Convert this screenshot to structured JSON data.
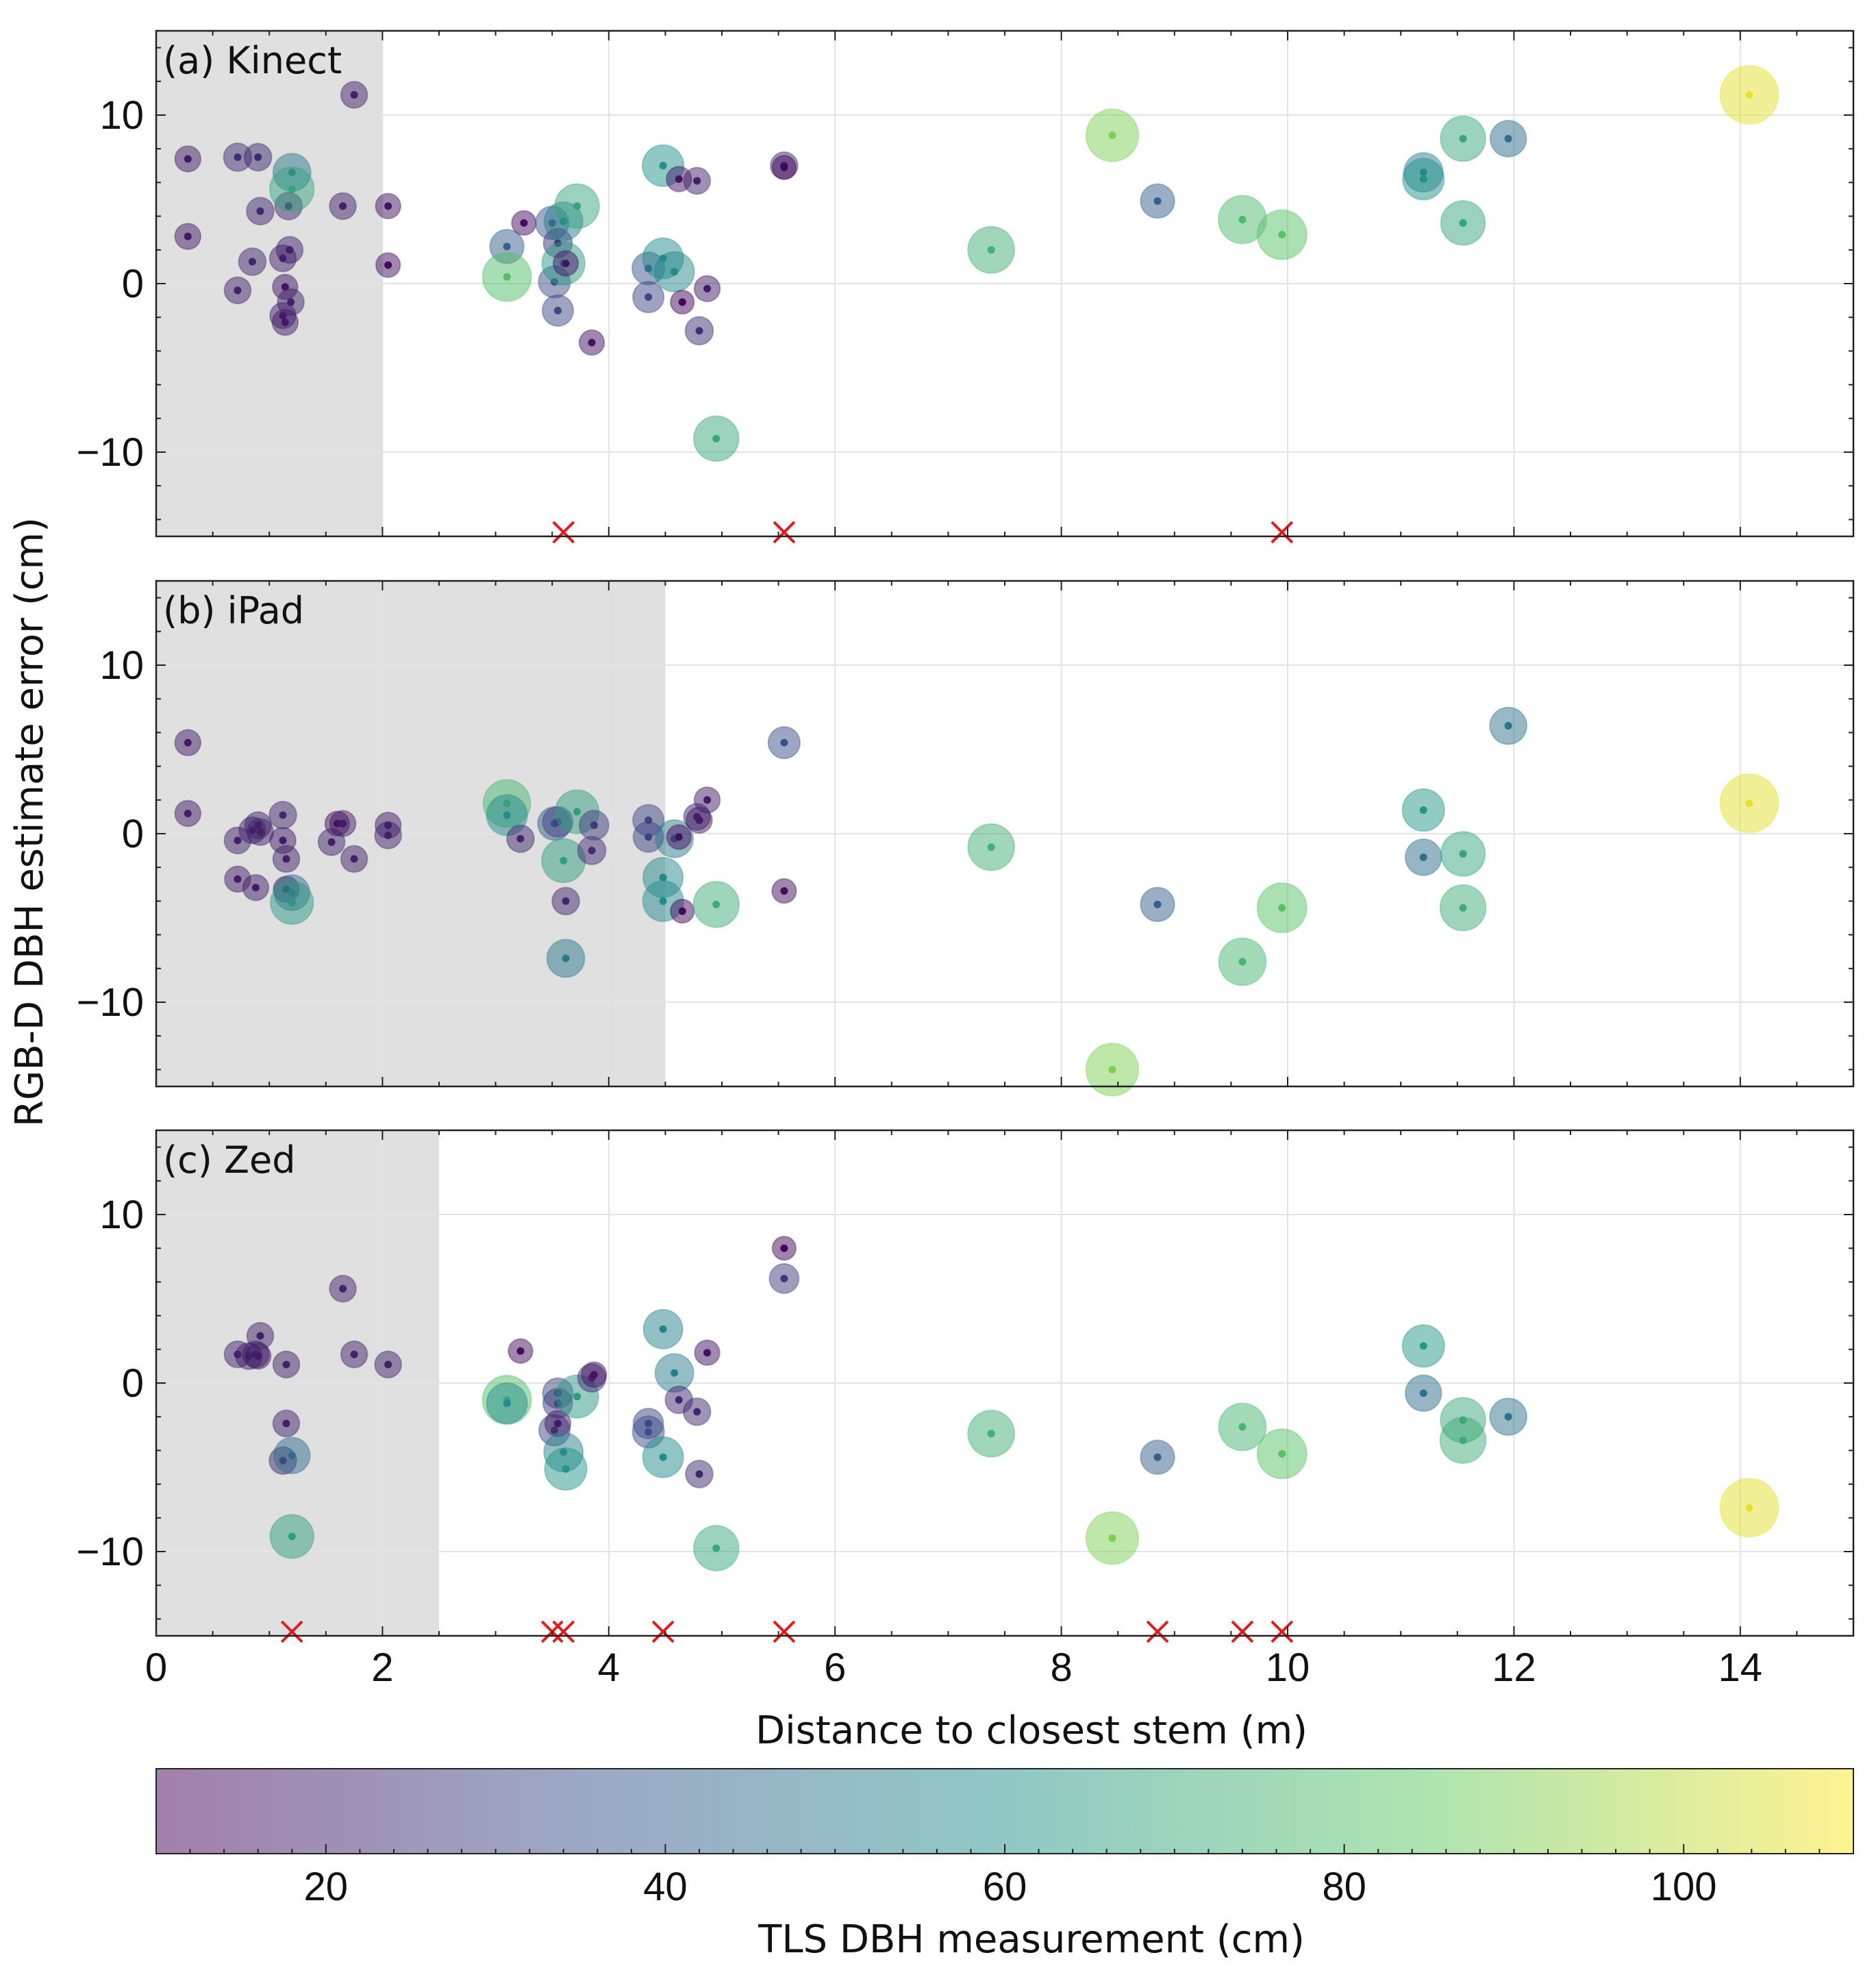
{
  "chart_data": {
    "type": "scatter",
    "xlabel": "Distance to closest stem (m)",
    "ylabel": "RGB-D DBH estimate error (cm)",
    "xlim": [
      0,
      15
    ],
    "ylim": [
      -15,
      15
    ],
    "x_ticks": [
      "0",
      "2",
      "4",
      "6",
      "8",
      "10",
      "12",
      "14"
    ],
    "y_ticks": [
      "10",
      "0",
      "−10"
    ],
    "x_tick_values": [
      0,
      2,
      4,
      6,
      8,
      10,
      12,
      14
    ],
    "y_tick_values": [
      10,
      0,
      -10
    ],
    "colorbar": {
      "label": "TLS DBH measurement (cm)",
      "range": [
        10,
        110
      ],
      "ticks": [
        "20",
        "40",
        "60",
        "80",
        "100"
      ],
      "tick_values": [
        20,
        40,
        60,
        80,
        100
      ],
      "colormap": [
        "#440154",
        "#3b528b",
        "#21918c",
        "#5ec962",
        "#fde725"
      ]
    },
    "panels": [
      {
        "label": "(a) Kinect",
        "shaded_xmax": 2.0,
        "points": [
          {
            "x": 0.28,
            "y": 7.4,
            "dbh": 18
          },
          {
            "x": 0.28,
            "y": 2.8,
            "dbh": 18
          },
          {
            "x": 0.72,
            "y": 7.5,
            "dbh": 24
          },
          {
            "x": 0.72,
            "y": -0.4,
            "dbh": 20
          },
          {
            "x": 0.85,
            "y": 1.3,
            "dbh": 22
          },
          {
            "x": 0.9,
            "y": 7.5,
            "dbh": 22
          },
          {
            "x": 0.92,
            "y": 4.3,
            "dbh": 22
          },
          {
            "x": 1.12,
            "y": 1.5,
            "dbh": 20
          },
          {
            "x": 1.14,
            "y": -0.2,
            "dbh": 16
          },
          {
            "x": 1.12,
            "y": -1.9,
            "dbh": 18
          },
          {
            "x": 1.14,
            "y": -2.3,
            "dbh": 18
          },
          {
            "x": 1.18,
            "y": 2.0,
            "dbh": 20
          },
          {
            "x": 1.17,
            "y": 4.6,
            "dbh": 22
          },
          {
            "x": 1.19,
            "y": -1.1,
            "dbh": 20
          },
          {
            "x": 1.2,
            "y": 6.6,
            "dbh": 50
          },
          {
            "x": 1.2,
            "y": 5.6,
            "dbh": 68
          },
          {
            "x": 1.65,
            "y": 4.6,
            "dbh": 20
          },
          {
            "x": 1.75,
            "y": 11.2,
            "dbh": 20
          },
          {
            "x": 2.05,
            "y": 4.6,
            "dbh": 16
          },
          {
            "x": 2.05,
            "y": 1.1,
            "dbh": 14
          },
          {
            "x": 3.1,
            "y": 2.2,
            "dbh": 40
          },
          {
            "x": 3.1,
            "y": 0.4,
            "dbh": 80
          },
          {
            "x": 3.25,
            "y": 3.6,
            "dbh": 14
          },
          {
            "x": 3.5,
            "y": 3.6,
            "dbh": 38
          },
          {
            "x": 3.55,
            "y": 2.4,
            "dbh": 26
          },
          {
            "x": 3.52,
            "y": 0.1,
            "dbh": 34
          },
          {
            "x": 3.55,
            "y": -1.6,
            "dbh": 32
          },
          {
            "x": 3.6,
            "y": 3.7,
            "dbh": 52
          },
          {
            "x": 3.6,
            "y": 1.2,
            "dbh": 64
          },
          {
            "x": 3.62,
            "y": 1.2,
            "dbh": 16
          },
          {
            "x": 3.72,
            "y": 4.6,
            "dbh": 68
          },
          {
            "x": 3.85,
            "y": -3.5,
            "dbh": 16
          },
          {
            "x": 4.35,
            "y": 0.9,
            "dbh": 36
          },
          {
            "x": 4.35,
            "y": -0.8,
            "dbh": 32
          },
          {
            "x": 4.48,
            "y": 7.0,
            "dbh": 60
          },
          {
            "x": 4.48,
            "y": 1.5,
            "dbh": 58
          },
          {
            "x": 4.58,
            "y": 0.7,
            "dbh": 56
          },
          {
            "x": 4.62,
            "y": 6.2,
            "dbh": 16
          },
          {
            "x": 4.65,
            "y": -1.1,
            "dbh": 12
          },
          {
            "x": 4.78,
            "y": 6.1,
            "dbh": 20
          },
          {
            "x": 4.8,
            "y": -2.8,
            "dbh": 24
          },
          {
            "x": 4.87,
            "y": -0.3,
            "dbh": 18
          },
          {
            "x": 4.95,
            "y": -9.2,
            "dbh": 70
          },
          {
            "x": 5.55,
            "y": 7.0,
            "dbh": 22
          },
          {
            "x": 5.55,
            "y": 6.9,
            "dbh": 12
          },
          {
            "x": 7.38,
            "y": 2.0,
            "dbh": 74
          },
          {
            "x": 8.45,
            "y": 8.8,
            "dbh": 90
          },
          {
            "x": 8.85,
            "y": 4.9,
            "dbh": 40
          },
          {
            "x": 9.6,
            "y": 3.8,
            "dbh": 78
          },
          {
            "x": 9.95,
            "y": 2.9,
            "dbh": 82
          },
          {
            "x": 11.2,
            "y": 6.6,
            "dbh": 54
          },
          {
            "x": 11.2,
            "y": 6.2,
            "dbh": 60
          },
          {
            "x": 11.55,
            "y": 8.6,
            "dbh": 70
          },
          {
            "x": 11.55,
            "y": 3.6,
            "dbh": 68
          },
          {
            "x": 11.95,
            "y": 8.6,
            "dbh": 46
          },
          {
            "x": 14.08,
            "y": 11.2,
            "dbh": 106
          }
        ],
        "excluded_x": [
          3.6,
          5.55,
          9.95
        ]
      },
      {
        "label": "(b) iPad",
        "shaded_xmax": 4.5,
        "points": [
          {
            "x": 0.28,
            "y": 5.4,
            "dbh": 18
          },
          {
            "x": 0.28,
            "y": 1.2,
            "dbh": 18
          },
          {
            "x": 0.72,
            "y": -0.4,
            "dbh": 20
          },
          {
            "x": 0.72,
            "y": -2.7,
            "dbh": 18
          },
          {
            "x": 0.85,
            "y": 0.2,
            "dbh": 20
          },
          {
            "x": 0.88,
            "y": -3.2,
            "dbh": 18
          },
          {
            "x": 0.9,
            "y": 0.5,
            "dbh": 20
          },
          {
            "x": 0.92,
            "y": 0.1,
            "dbh": 20
          },
          {
            "x": 1.12,
            "y": -0.4,
            "dbh": 18
          },
          {
            "x": 1.12,
            "y": 1.1,
            "dbh": 22
          },
          {
            "x": 1.15,
            "y": -1.5,
            "dbh": 20
          },
          {
            "x": 1.15,
            "y": -3.3,
            "dbh": 18
          },
          {
            "x": 1.2,
            "y": -3.5,
            "dbh": 44
          },
          {
            "x": 1.2,
            "y": -4.1,
            "dbh": 64
          },
          {
            "x": 1.55,
            "y": -0.5,
            "dbh": 20
          },
          {
            "x": 1.6,
            "y": 0.6,
            "dbh": 14
          },
          {
            "x": 1.65,
            "y": 0.6,
            "dbh": 18
          },
          {
            "x": 1.75,
            "y": -1.5,
            "dbh": 20
          },
          {
            "x": 2.05,
            "y": 0.5,
            "dbh": 18
          },
          {
            "x": 2.05,
            "y": -0.1,
            "dbh": 20
          },
          {
            "x": 3.1,
            "y": 1.8,
            "dbh": 76
          },
          {
            "x": 3.1,
            "y": 1.1,
            "dbh": 58
          },
          {
            "x": 3.22,
            "y": -0.3,
            "dbh": 22
          },
          {
            "x": 3.52,
            "y": 0.6,
            "dbh": 38
          },
          {
            "x": 3.55,
            "y": 0.7,
            "dbh": 30
          },
          {
            "x": 3.6,
            "y": -1.6,
            "dbh": 66
          },
          {
            "x": 3.62,
            "y": -4.0,
            "dbh": 22
          },
          {
            "x": 3.62,
            "y": -7.4,
            "dbh": 50
          },
          {
            "x": 3.72,
            "y": 1.3,
            "dbh": 66
          },
          {
            "x": 3.85,
            "y": -1.0,
            "dbh": 24
          },
          {
            "x": 3.87,
            "y": 0.5,
            "dbh": 28
          },
          {
            "x": 4.35,
            "y": 0.8,
            "dbh": 32
          },
          {
            "x": 4.35,
            "y": -0.2,
            "dbh": 30
          },
          {
            "x": 4.48,
            "y": -2.6,
            "dbh": 56
          },
          {
            "x": 4.48,
            "y": -4.0,
            "dbh": 58
          },
          {
            "x": 4.58,
            "y": -0.3,
            "dbh": 50
          },
          {
            "x": 4.62,
            "y": -0.2,
            "dbh": 14
          },
          {
            "x": 4.65,
            "y": -4.6,
            "dbh": 12
          },
          {
            "x": 4.78,
            "y": 1.0,
            "dbh": 20
          },
          {
            "x": 4.8,
            "y": 0.8,
            "dbh": 18
          },
          {
            "x": 4.87,
            "y": 2.0,
            "dbh": 18
          },
          {
            "x": 4.95,
            "y": -4.2,
            "dbh": 72
          },
          {
            "x": 5.55,
            "y": 5.4,
            "dbh": 34
          },
          {
            "x": 5.55,
            "y": -3.4,
            "dbh": 14
          },
          {
            "x": 7.38,
            "y": -0.8,
            "dbh": 74
          },
          {
            "x": 8.45,
            "y": -14.0,
            "dbh": 90
          },
          {
            "x": 8.85,
            "y": -4.2,
            "dbh": 40
          },
          {
            "x": 9.6,
            "y": -7.6,
            "dbh": 76
          },
          {
            "x": 9.95,
            "y": -4.4,
            "dbh": 82
          },
          {
            "x": 11.2,
            "y": 1.4,
            "dbh": 62
          },
          {
            "x": 11.2,
            "y": -1.4,
            "dbh": 46
          },
          {
            "x": 11.55,
            "y": -1.2,
            "dbh": 68
          },
          {
            "x": 11.55,
            "y": -4.4,
            "dbh": 72
          },
          {
            "x": 11.95,
            "y": 6.4,
            "dbh": 48
          },
          {
            "x": 14.08,
            "y": 1.8,
            "dbh": 106
          }
        ],
        "excluded_x": []
      },
      {
        "label": "(c) Zed",
        "shaded_xmax": 2.5,
        "points": [
          {
            "x": 0.72,
            "y": 1.7,
            "dbh": 20
          },
          {
            "x": 0.82,
            "y": 1.6,
            "dbh": 20
          },
          {
            "x": 0.88,
            "y": 1.7,
            "dbh": 20
          },
          {
            "x": 0.9,
            "y": 1.6,
            "dbh": 18
          },
          {
            "x": 0.92,
            "y": 2.8,
            "dbh": 20
          },
          {
            "x": 1.12,
            "y": -4.6,
            "dbh": 22
          },
          {
            "x": 1.15,
            "y": 1.1,
            "dbh": 20
          },
          {
            "x": 1.15,
            "y": -2.4,
            "dbh": 20
          },
          {
            "x": 1.2,
            "y": -4.3,
            "dbh": 46
          },
          {
            "x": 1.2,
            "y": -9.1,
            "dbh": 66
          },
          {
            "x": 1.65,
            "y": 5.6,
            "dbh": 20
          },
          {
            "x": 1.75,
            "y": 1.7,
            "dbh": 20
          },
          {
            "x": 2.05,
            "y": 1.1,
            "dbh": 20
          },
          {
            "x": 3.1,
            "y": -1.0,
            "dbh": 80
          },
          {
            "x": 3.1,
            "y": -1.2,
            "dbh": 58
          },
          {
            "x": 3.22,
            "y": 1.9,
            "dbh": 14
          },
          {
            "x": 3.52,
            "y": -2.8,
            "dbh": 32
          },
          {
            "x": 3.55,
            "y": -0.6,
            "dbh": 30
          },
          {
            "x": 3.55,
            "y": -1.2,
            "dbh": 28
          },
          {
            "x": 3.55,
            "y": -2.4,
            "dbh": 18
          },
          {
            "x": 3.6,
            "y": -4.1,
            "dbh": 54
          },
          {
            "x": 3.62,
            "y": -5.1,
            "dbh": 62
          },
          {
            "x": 3.72,
            "y": -0.8,
            "dbh": 64
          },
          {
            "x": 3.85,
            "y": 0.3,
            "dbh": 24
          },
          {
            "x": 3.87,
            "y": 0.5,
            "dbh": 16
          },
          {
            "x": 4.35,
            "y": -2.4,
            "dbh": 30
          },
          {
            "x": 4.35,
            "y": -2.9,
            "dbh": 34
          },
          {
            "x": 4.48,
            "y": 3.2,
            "dbh": 54
          },
          {
            "x": 4.48,
            "y": -4.4,
            "dbh": 58
          },
          {
            "x": 4.58,
            "y": 0.6,
            "dbh": 52
          },
          {
            "x": 4.62,
            "y": -1.0,
            "dbh": 22
          },
          {
            "x": 4.78,
            "y": -1.7,
            "dbh": 22
          },
          {
            "x": 4.8,
            "y": -5.4,
            "dbh": 22
          },
          {
            "x": 4.87,
            "y": 1.8,
            "dbh": 16
          },
          {
            "x": 4.95,
            "y": -9.8,
            "dbh": 70
          },
          {
            "x": 5.55,
            "y": 8.0,
            "dbh": 12
          },
          {
            "x": 5.55,
            "y": 6.2,
            "dbh": 28
          },
          {
            "x": 7.38,
            "y": -3.0,
            "dbh": 74
          },
          {
            "x": 8.45,
            "y": -9.2,
            "dbh": 90
          },
          {
            "x": 8.85,
            "y": -4.4,
            "dbh": 40
          },
          {
            "x": 9.6,
            "y": -2.6,
            "dbh": 76
          },
          {
            "x": 9.95,
            "y": -4.2,
            "dbh": 82
          },
          {
            "x": 11.2,
            "y": 2.2,
            "dbh": 62
          },
          {
            "x": 11.2,
            "y": -0.6,
            "dbh": 46
          },
          {
            "x": 11.55,
            "y": -2.2,
            "dbh": 70
          },
          {
            "x": 11.55,
            "y": -3.4,
            "dbh": 72
          },
          {
            "x": 11.95,
            "y": -2.0,
            "dbh": 48
          },
          {
            "x": 14.08,
            "y": -7.4,
            "dbh": 106
          }
        ],
        "excluded_x": [
          1.2,
          3.5,
          3.6,
          4.48,
          5.55,
          8.85,
          9.6,
          9.95
        ]
      }
    ]
  }
}
